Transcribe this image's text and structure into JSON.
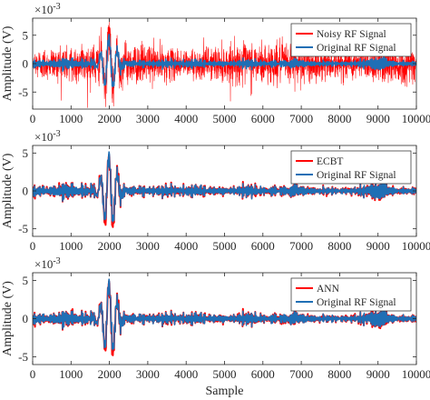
{
  "chart_data": [
    {
      "type": "line",
      "panel": "top",
      "ylabel": "Amplitude (V)",
      "xlabel": "",
      "y_exponent": "×10",
      "y_exponent_power": "-3",
      "xlim": [
        0,
        10000
      ],
      "ylim": [
        -8,
        8
      ],
      "xticks": [
        0,
        1000,
        2000,
        3000,
        4000,
        5000,
        6000,
        7000,
        8000,
        9000,
        10000
      ],
      "yticks": [
        -5,
        0,
        5
      ],
      "legend_position": "top-right",
      "grid": false,
      "series": [
        {
          "name": "Noisy RF Signal",
          "color": "#ff0000",
          "style": "noisy",
          "noise_amplitude": 2.6,
          "burst": {
            "center": 2000,
            "amplitude": 5.0,
            "period": 220,
            "width": 230
          },
          "background_amplitude": 0.45
        },
        {
          "name": "Original RF Signal",
          "color": "#1f6fb5",
          "style": "clean",
          "burst": {
            "center": 2000,
            "amplitude": 4.8,
            "period": 220,
            "width": 230
          },
          "background_amplitude": 0.45
        }
      ]
    },
    {
      "type": "line",
      "panel": "middle",
      "ylabel": "Amplitude (V)",
      "xlabel": "",
      "y_exponent": "×10",
      "y_exponent_power": "-3",
      "xlim": [
        0,
        10000
      ],
      "ylim": [
        -6,
        6
      ],
      "xticks": [
        0,
        1000,
        2000,
        3000,
        4000,
        5000,
        6000,
        7000,
        8000,
        9000,
        10000
      ],
      "yticks": [
        -5,
        0,
        5
      ],
      "legend_position": "top-right",
      "grid": false,
      "series": [
        {
          "name": "ECBT",
          "color": "#ff0000",
          "style": "denoised",
          "burst": {
            "center": 2000,
            "amplitude": 4.8,
            "period": 220,
            "width": 230
          },
          "background_amplitude": 0.45
        },
        {
          "name": "Original RF Signal",
          "color": "#1f6fb5",
          "style": "clean",
          "burst": {
            "center": 2000,
            "amplitude": 4.8,
            "period": 220,
            "width": 230
          },
          "background_amplitude": 0.45
        }
      ]
    },
    {
      "type": "line",
      "panel": "bottom",
      "ylabel": "Amplitude (V)",
      "xlabel": "Sample",
      "y_exponent": "×10",
      "y_exponent_power": "-3",
      "xlim": [
        0,
        10000
      ],
      "ylim": [
        -6,
        6
      ],
      "xticks": [
        0,
        1000,
        2000,
        3000,
        4000,
        5000,
        6000,
        7000,
        8000,
        9000,
        10000
      ],
      "yticks": [
        -5,
        0,
        5
      ],
      "legend_position": "top-right",
      "grid": false,
      "series": [
        {
          "name": "ANN",
          "color": "#ff0000",
          "style": "denoised",
          "burst": {
            "center": 2000,
            "amplitude": 4.8,
            "period": 220,
            "width": 230
          },
          "background_amplitude": 0.45
        },
        {
          "name": "Original RF Signal",
          "color": "#1f6fb5",
          "style": "clean",
          "burst": {
            "center": 2000,
            "amplitude": 4.8,
            "period": 220,
            "width": 230
          },
          "background_amplitude": 0.45
        }
      ]
    }
  ]
}
